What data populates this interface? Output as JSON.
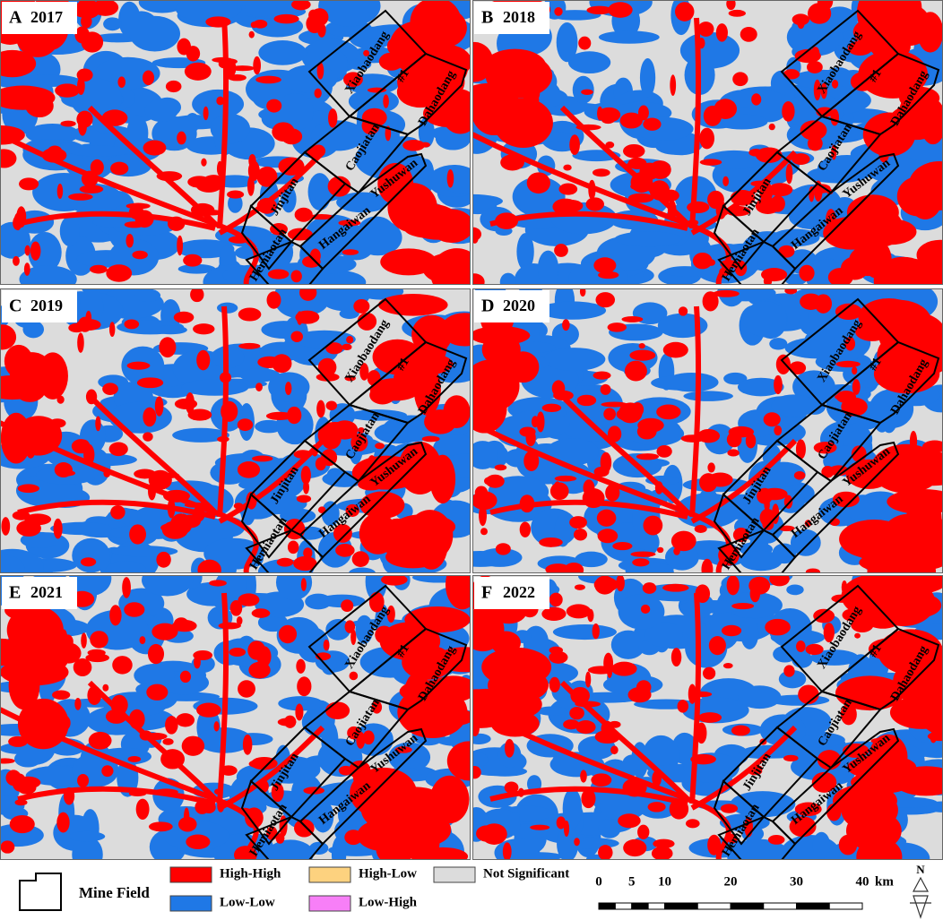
{
  "panels": [
    {
      "letter": "A",
      "year": "2017"
    },
    {
      "letter": "B",
      "year": "2018"
    },
    {
      "letter": "C",
      "year": "2019"
    },
    {
      "letter": "D",
      "year": "2020"
    },
    {
      "letter": "E",
      "year": "2021"
    },
    {
      "letter": "F",
      "year": "2022"
    }
  ],
  "mine_fields": [
    "Xiaobaodang",
    "#1",
    "Dahaodang",
    "Caojiatan",
    "Jinjitan",
    "Yushuwan",
    "Hangaiwan",
    "Hemiaotan"
  ],
  "legend": {
    "mine_field": "Mine Field",
    "classes": [
      {
        "label": "High-High",
        "color": "#ff0000"
      },
      {
        "label": "Low-Low",
        "color": "#1f78e6"
      },
      {
        "label": "High-Low",
        "color": "#fdd27f"
      },
      {
        "label": "Low-High",
        "color": "#f77ff7"
      },
      {
        "label": "Not Significant",
        "color": "#dcdcdc"
      }
    ]
  },
  "scale": {
    "ticks": [
      0,
      5,
      10,
      20,
      30,
      40
    ],
    "unit": "km"
  },
  "north": "N"
}
